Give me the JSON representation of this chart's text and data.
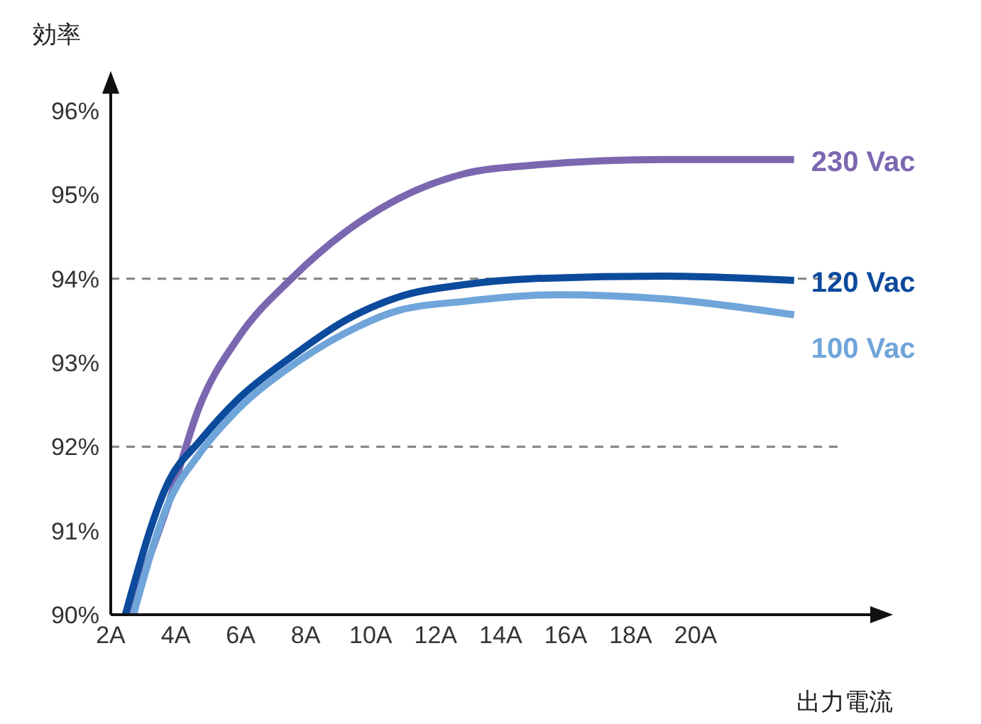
{
  "chart_data": {
    "type": "line",
    "xlabel": "出力電流",
    "ylabel": "効率",
    "xlim": [
      2,
      24.5
    ],
    "ylim": [
      90,
      96
    ],
    "xticks": [
      {
        "value": 2,
        "label": "2A"
      },
      {
        "value": 4,
        "label": "4A"
      },
      {
        "value": 6,
        "label": "6A"
      },
      {
        "value": 8,
        "label": "8A"
      },
      {
        "value": 10,
        "label": "10A"
      },
      {
        "value": 12,
        "label": "12A"
      },
      {
        "value": 14,
        "label": "14A"
      },
      {
        "value": 16,
        "label": "16A"
      },
      {
        "value": 18,
        "label": "18A"
      },
      {
        "value": 20,
        "label": "20A"
      }
    ],
    "yticks": [
      {
        "value": 90,
        "label": "90%"
      },
      {
        "value": 91,
        "label": "91%"
      },
      {
        "value": 92,
        "label": "92%"
      },
      {
        "value": 93,
        "label": "93%"
      },
      {
        "value": 94,
        "label": "94%"
      },
      {
        "value": 95,
        "label": "95%"
      },
      {
        "value": 96,
        "label": "96%"
      }
    ],
    "ref_lines": [
      {
        "axis": "y",
        "value": 94,
        "color": "#8a8a8a",
        "line_style": "dashed"
      },
      {
        "axis": "y",
        "value": 92,
        "color": "#8a8a8a",
        "line_style": "dashed"
      }
    ],
    "grid": false,
    "legend": false,
    "marker": "none",
    "line_style": "solid",
    "series": [
      {
        "name": "230 Vac",
        "color": "#7b67b0",
        "x": [
          2.53,
          3.8,
          4.7,
          5.93,
          7.56,
          9.2,
          10.84,
          12.88,
          14.93,
          19.0,
          23.03
        ],
        "values": [
          90,
          91.35,
          92.45,
          93.3,
          94.0,
          94.55,
          94.95,
          95.25,
          95.35,
          95.42,
          95.42
        ]
      },
      {
        "name": "120 Vac",
        "color": "#0c4a9c",
        "x": [
          2.45,
          3.8,
          4.7,
          5.93,
          7.56,
          9.2,
          10.84,
          12.88,
          14.93,
          19.0,
          23.03
        ],
        "values": [
          90,
          91.6,
          92.05,
          92.57,
          93.07,
          93.5,
          93.78,
          93.93,
          94.0,
          94.03,
          93.98
        ]
      },
      {
        "name": "100 Vac",
        "color": "#70a5da",
        "x": [
          2.7,
          3.8,
          4.7,
          5.93,
          7.56,
          9.2,
          10.84,
          12.88,
          15.75,
          19.0,
          23.03
        ],
        "values": [
          90,
          91.35,
          91.9,
          92.45,
          92.96,
          93.35,
          93.62,
          93.73,
          93.81,
          93.76,
          93.57
        ]
      }
    ]
  }
}
